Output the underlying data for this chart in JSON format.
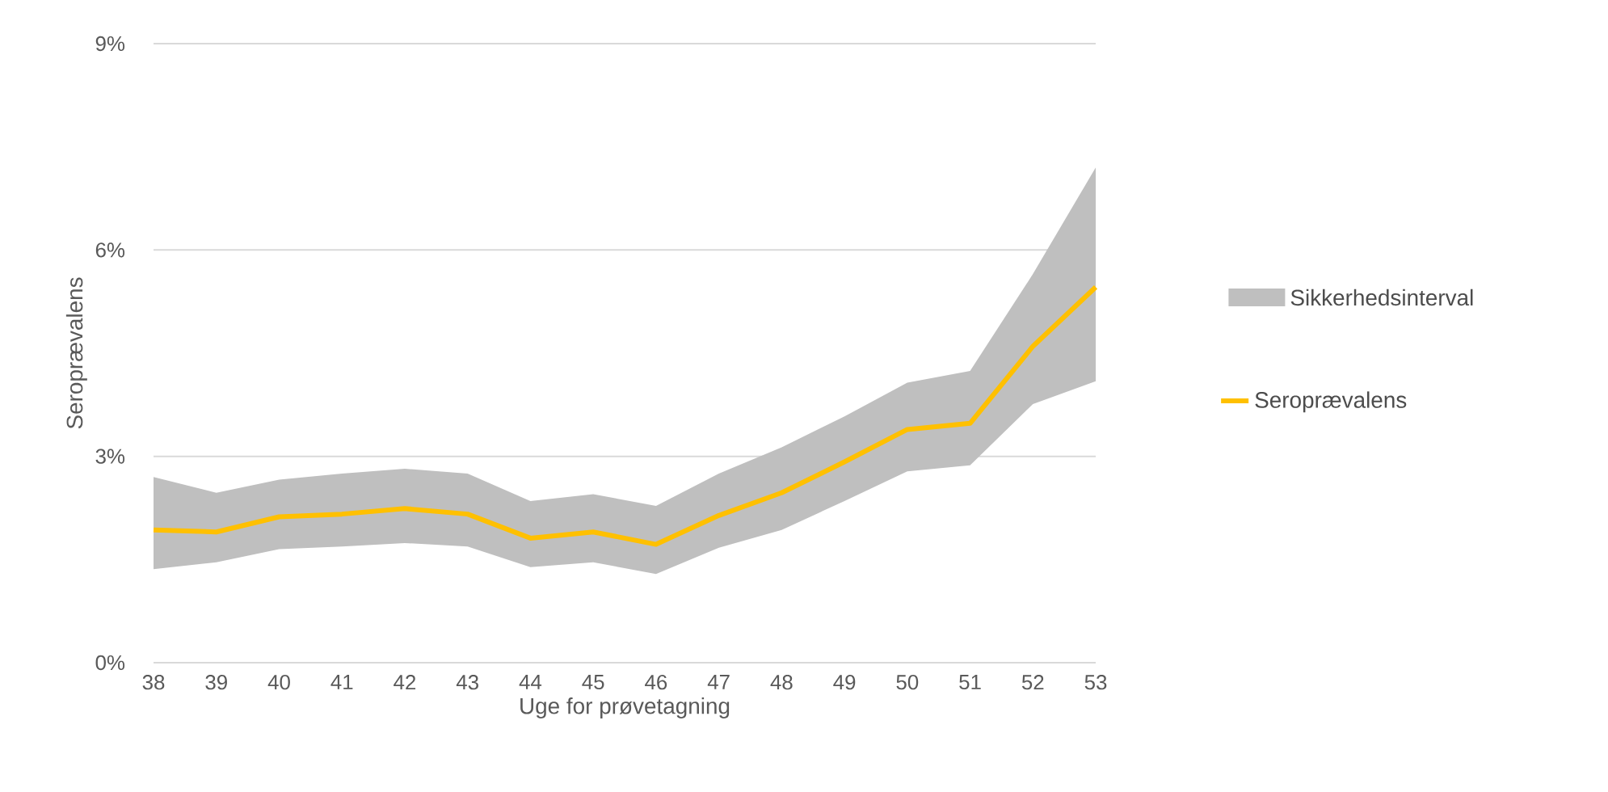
{
  "chart_data": {
    "type": "line",
    "xlabel": "Uge for prøvetagning",
    "ylabel": "Seroprævalens",
    "categories": [
      "38",
      "39",
      "40",
      "41",
      "42",
      "43",
      "44",
      "45",
      "46",
      "47",
      "48",
      "49",
      "50",
      "51",
      "52",
      "53"
    ],
    "series": [
      {
        "name": "Seroprævalens",
        "color": "#ffc000",
        "values": [
          1.93,
          1.9,
          2.12,
          2.16,
          2.24,
          2.16,
          1.81,
          1.9,
          1.72,
          2.14,
          2.47,
          2.92,
          3.39,
          3.48,
          4.6,
          5.46
        ],
        "lower": [
          1.36,
          1.46,
          1.65,
          1.69,
          1.74,
          1.69,
          1.39,
          1.46,
          1.29,
          1.67,
          1.93,
          2.35,
          2.78,
          2.87,
          3.76,
          4.09
        ],
        "upper": [
          2.7,
          2.47,
          2.66,
          2.75,
          2.82,
          2.75,
          2.35,
          2.45,
          2.28,
          2.75,
          3.13,
          3.58,
          4.07,
          4.24,
          5.65,
          7.2
        ]
      }
    ],
    "annotations": [
      "Sikkerhedsinterval"
    ],
    "ylim": [
      0,
      9
    ],
    "yticks": [
      {
        "value": 0,
        "label": "0%"
      },
      {
        "value": 3,
        "label": "3%"
      },
      {
        "value": 6,
        "label": "6%"
      },
      {
        "value": 9,
        "label": "9%"
      }
    ],
    "grid": "y",
    "legend": "right",
    "marker": "none",
    "line_style": "solid"
  }
}
